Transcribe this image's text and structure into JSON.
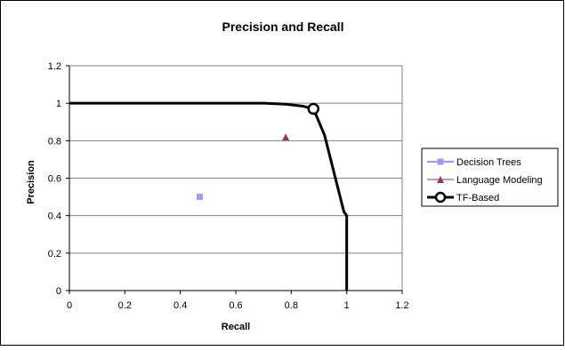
{
  "chart_data": {
    "type": "scatter",
    "title": "Precision and Recall",
    "xlabel": "Recall",
    "ylabel": "Precision",
    "xlim": [
      0,
      1.2
    ],
    "ylim": [
      0,
      1.2
    ],
    "xticks": [
      "0",
      "0.2",
      "0.4",
      "0.6",
      "0.8",
      "1",
      "1.2"
    ],
    "yticks": [
      "0",
      "0.2",
      "0.4",
      "0.6",
      "0.8",
      "1",
      "1.2"
    ],
    "grid": "horizontal",
    "legend_position": "right",
    "series": [
      {
        "name": "Decision Trees",
        "style": "marker-square",
        "color": "#9999ff",
        "points": [
          {
            "x": 0.47,
            "y": 0.5
          }
        ]
      },
      {
        "name": "Language Modeling",
        "style": "marker-triangle",
        "color": "#993366",
        "points": [
          {
            "x": 0.78,
            "y": 0.82
          }
        ]
      },
      {
        "name": "TF-Based",
        "style": "thick-line-with-circle",
        "color": "#000000",
        "line": [
          {
            "x": 0,
            "y": 1
          },
          {
            "x": 0.7,
            "y": 1
          },
          {
            "x": 0.78,
            "y": 0.995
          },
          {
            "x": 0.84,
            "y": 0.985
          },
          {
            "x": 0.88,
            "y": 0.97
          },
          {
            "x": 0.92,
            "y": 0.83
          },
          {
            "x": 0.99,
            "y": 0.42
          },
          {
            "x": 1.0,
            "y": 0.4
          },
          {
            "x": 1.0,
            "y": 0
          }
        ],
        "highlight": {
          "x": 0.88,
          "y": 0.97
        }
      }
    ]
  }
}
